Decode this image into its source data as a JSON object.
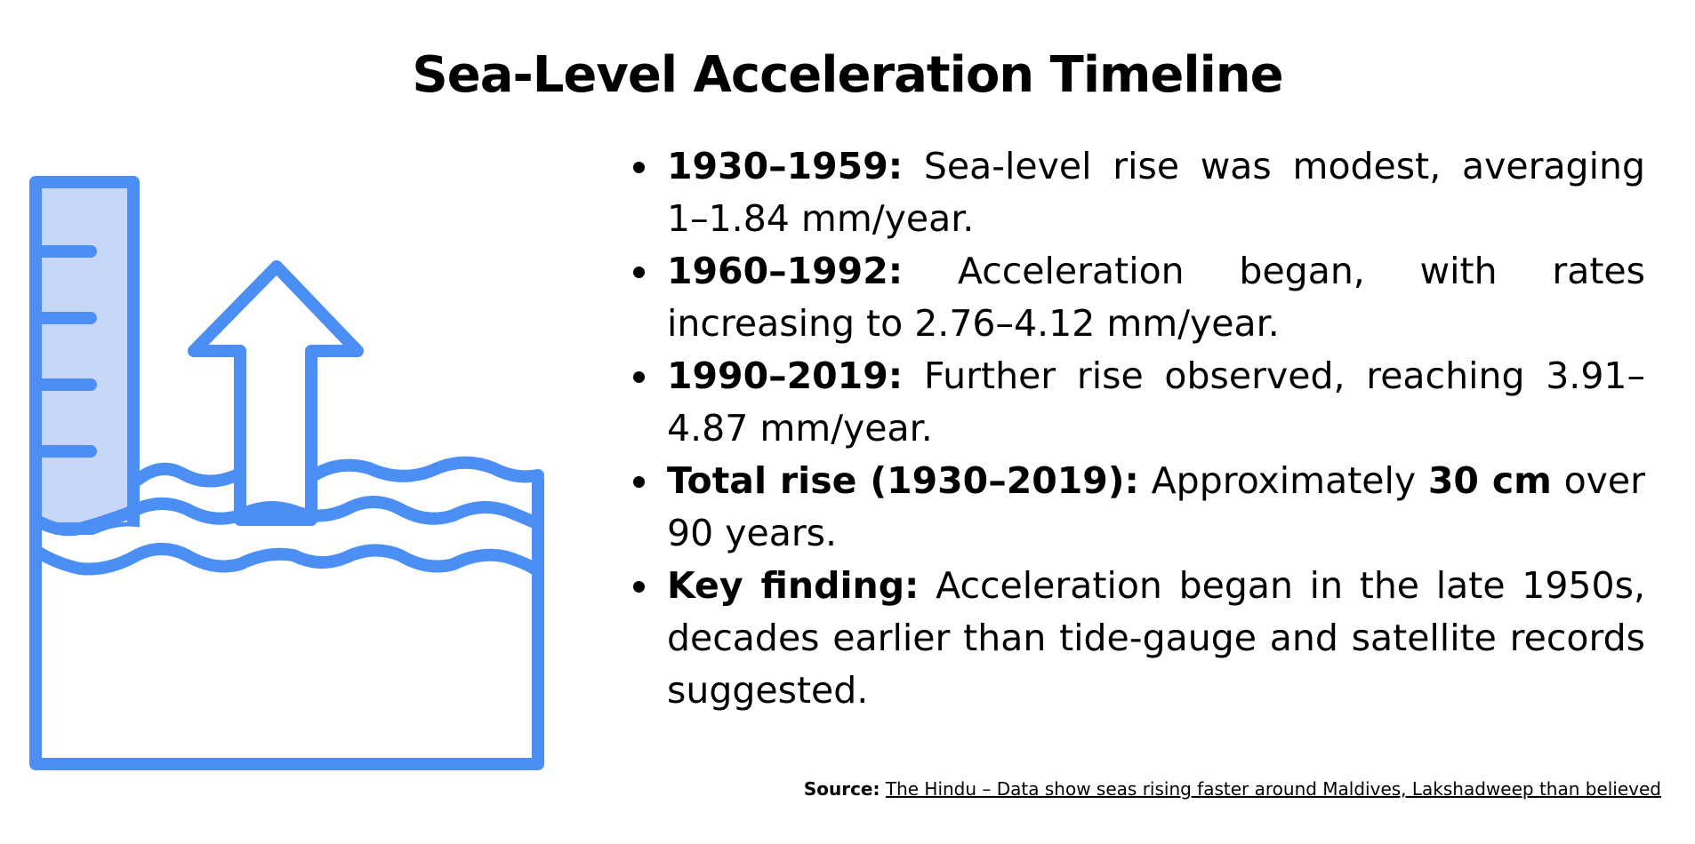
{
  "title": "Sea-Level Acceleration Timeline",
  "accent_color": "#4b8ff5",
  "fill_color": "#c8d7f7",
  "illustration_icon": "sea-level-rise-icon",
  "bullets": [
    {
      "label": "1930–1959:",
      "text": " Sea-level rise was modest, averaging 1–1.84 mm/year."
    },
    {
      "label": "1960–1992:",
      "text": " Acceleration began, with rates increasing to 2.76–4.12 mm/year."
    },
    {
      "label": "1990–2019:",
      "text": " Further rise observed, reaching 3.91–4.87 mm/year."
    },
    {
      "label": "Total rise (1930–2019):",
      "text_before": " Approximately ",
      "emphasis": "30 cm",
      "text_after": " over 90 years."
    },
    {
      "label": "Key finding:",
      "text": " Acceleration began in the late 1950s, decades earlier than tide-gauge and satellite records suggested."
    }
  ],
  "source": {
    "label": "Source:",
    "text": "The Hindu – Data show seas rising faster around Maldives, Lakshadweep than believed"
  }
}
